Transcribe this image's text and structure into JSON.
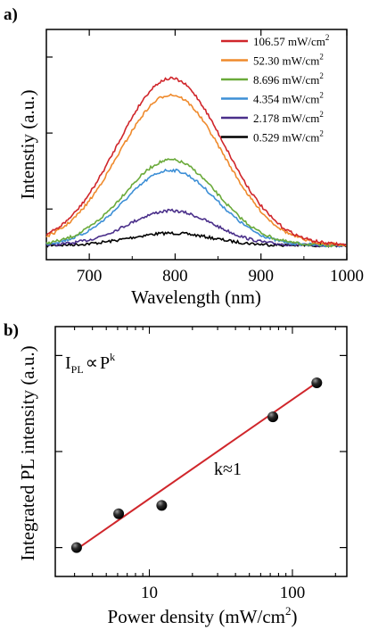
{
  "chart_data": [
    {
      "panel": "a)",
      "type": "line",
      "xlabel": "Wavelength (nm)",
      "ylabel": "Intenstiy (a.u.)",
      "xlim": [
        650,
        1000
      ],
      "ylim": [
        0,
        1
      ],
      "xticks": [
        700,
        800,
        900,
        1000
      ],
      "legend_position": "top-right",
      "grid": false,
      "peak_wavelength": 795,
      "series": [
        {
          "name": "106.57 mW/cm",
          "sup": "2",
          "color": "#d0262b",
          "peak": 0.82,
          "width": 62
        },
        {
          "name": "52.30 mW/cm",
          "sup": "2",
          "color": "#ef8a2c",
          "peak": 0.74,
          "width": 61
        },
        {
          "name": "8.696 mW/cm",
          "sup": "2",
          "color": "#6aaa3a",
          "peak": 0.42,
          "width": 54
        },
        {
          "name": "4.354 mW/cm",
          "sup": "2",
          "color": "#3d8fd6",
          "peak": 0.37,
          "width": 53
        },
        {
          "name": "2.178 mW/cm",
          "sup": "2",
          "color": "#4a2f8a",
          "peak": 0.17,
          "width": 50
        },
        {
          "name": "0.529 mW/cm",
          "sup": "2",
          "color": "#000000",
          "peak": 0.06,
          "width": 48
        }
      ]
    },
    {
      "panel": "b)",
      "type": "scatter",
      "xlabel": "Power density (mW/cm",
      "xlabel_sup": "2",
      "xlabel_close": ")",
      "ylabel": "Integrated PL intensity (a.u.)",
      "xscale": "log",
      "yscale": "log",
      "xlim": [
        2.2,
        240
      ],
      "ylim": [
        0.5,
        200
      ],
      "xticks": [
        "10",
        "100"
      ],
      "xtick_values": [
        10,
        100
      ],
      "points": [
        {
          "x": 3.1,
          "y": 1.0
        },
        {
          "x": 6.1,
          "y": 2.25
        },
        {
          "x": 12.2,
          "y": 2.75
        },
        {
          "x": 73.0,
          "y": 23.0
        },
        {
          "x": 148.0,
          "y": 52.0
        }
      ],
      "fit_line": {
        "x": [
          3.1,
          150.0
        ],
        "y": [
          0.96,
          53.0
        ],
        "color": "#d0262b"
      },
      "annotations": {
        "law_I": "I",
        "law_sub": "PL",
        "law_prop": "∝",
        "law_P": "P",
        "law_sup": "k",
        "slope": "k≈1"
      }
    }
  ]
}
